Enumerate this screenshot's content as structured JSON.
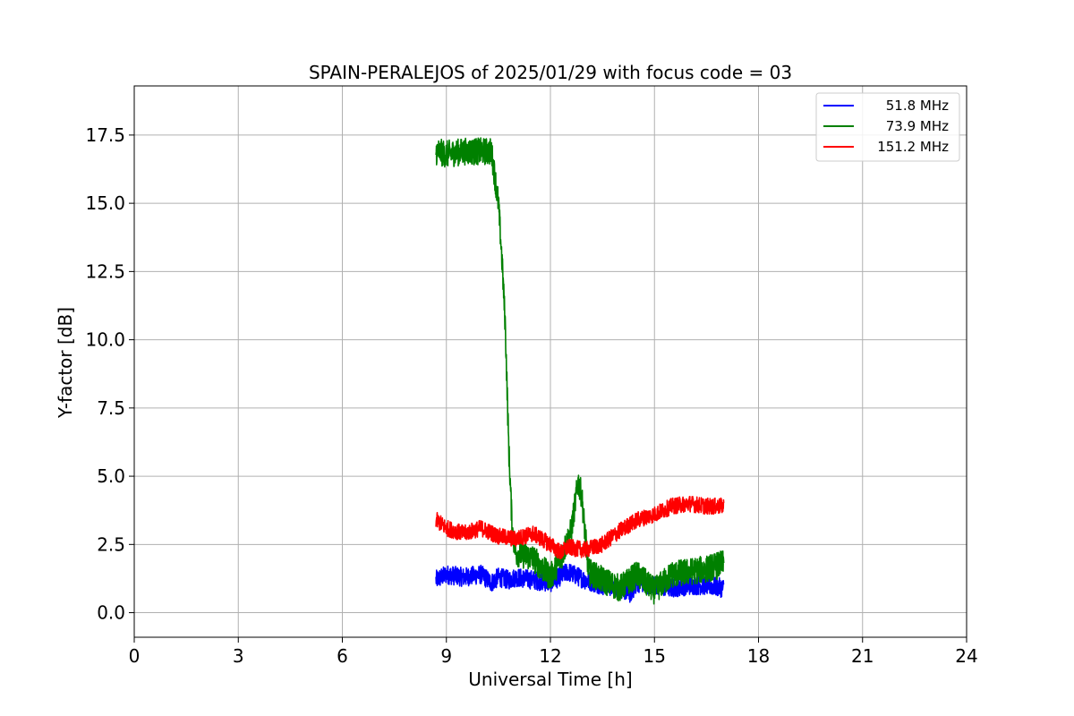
{
  "chart_data": {
    "type": "line",
    "title": "SPAIN-PERALEJOS of 2025/01/29 with focus code = 03",
    "xlabel": "Universal Time [h]",
    "ylabel": "Y-factor [dB]",
    "xlim": [
      0,
      24
    ],
    "ylim": [
      -0.9,
      19.3
    ],
    "xticks": [
      0,
      3,
      6,
      9,
      12,
      15,
      18,
      21,
      24
    ],
    "yticks": [
      0.0,
      2.5,
      5.0,
      7.5,
      10.0,
      12.5,
      15.0,
      17.5
    ],
    "ytick_labels": [
      "0.0",
      "2.5",
      "5.0",
      "7.5",
      "10.0",
      "12.5",
      "15.0",
      "17.5"
    ],
    "grid": true,
    "legend_position": "top-right",
    "series": [
      {
        "name": "51.8 MHz",
        "color": "#0000ff",
        "x": [
          8.7,
          9.0,
          9.5,
          10.0,
          10.3,
          10.5,
          10.8,
          11.0,
          11.5,
          12.0,
          12.5,
          13.0,
          13.5,
          14.0,
          14.3,
          14.5,
          15.0,
          15.5,
          16.0,
          16.5,
          17.0
        ],
        "y": [
          1.2,
          1.4,
          1.3,
          1.4,
          1.1,
          1.3,
          1.2,
          1.3,
          1.2,
          1.1,
          1.5,
          1.2,
          1.0,
          0.9,
          0.7,
          1.1,
          1.0,
          0.9,
          1.0,
          1.0,
          0.9
        ],
        "noise": 0.35
      },
      {
        "name": "73.9 MHz",
        "color": "#008000",
        "x": [
          8.7,
          9.0,
          9.5,
          10.0,
          10.3,
          10.5,
          10.6,
          10.7,
          10.8,
          10.9,
          11.0,
          11.5,
          12.0,
          12.3,
          12.6,
          12.8,
          12.9,
          13.1,
          13.5,
          14.0,
          14.5,
          15.0,
          15.5,
          16.0,
          16.5,
          17.0
        ],
        "y": [
          16.9,
          16.8,
          16.9,
          16.9,
          16.9,
          15.0,
          13.0,
          10.5,
          6.0,
          3.0,
          2.2,
          2.0,
          1.3,
          2.0,
          3.0,
          4.8,
          4.3,
          1.5,
          1.2,
          0.9,
          1.4,
          0.8,
          1.4,
          1.5,
          1.6,
          1.8
        ],
        "noise": 0.5
      },
      {
        "name": "151.2 MHz",
        "color": "#ff0000",
        "x": [
          8.7,
          9.0,
          9.5,
          10.0,
          10.5,
          11.0,
          11.5,
          12.0,
          12.3,
          12.5,
          13.0,
          13.5,
          14.0,
          14.5,
          15.0,
          15.5,
          16.0,
          16.5,
          17.0
        ],
        "y": [
          3.4,
          3.1,
          2.9,
          3.1,
          2.8,
          2.7,
          2.9,
          2.5,
          2.2,
          2.4,
          2.3,
          2.5,
          3.0,
          3.4,
          3.6,
          3.9,
          4.0,
          3.9,
          3.9
        ],
        "noise": 0.3
      }
    ]
  }
}
